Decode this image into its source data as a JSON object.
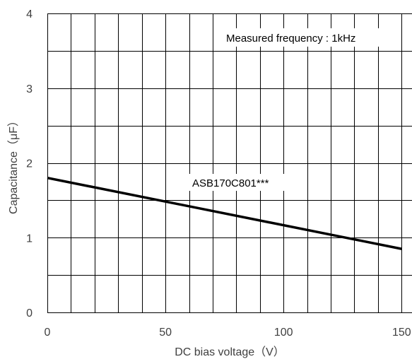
{
  "chart_data": {
    "type": "line",
    "title": "",
    "xlabel": "DC bias voltage（V）",
    "ylabel": "Capacitance（μF）",
    "xlim": [
      0,
      155
    ],
    "ylim": [
      0,
      4
    ],
    "x_ticks": [
      0,
      50,
      100,
      150
    ],
    "x_tick_labels": [
      "0",
      "50",
      "100",
      "150"
    ],
    "y_ticks": [
      0,
      1,
      2,
      3,
      4
    ],
    "y_tick_labels": [
      "0",
      "1",
      "2",
      "3",
      "4"
    ],
    "x_grid_step": 10,
    "y_grid_step": 0.5,
    "grid": true,
    "legend": "none",
    "series": [
      {
        "name": "ASB170C801***",
        "color": "#000000",
        "x": [
          0,
          150
        ],
        "y": [
          1.8,
          0.85
        ]
      }
    ],
    "annotations": [
      {
        "text": "Measured frequency : 1kHz"
      },
      {
        "text": "ASB170C801***"
      }
    ]
  }
}
